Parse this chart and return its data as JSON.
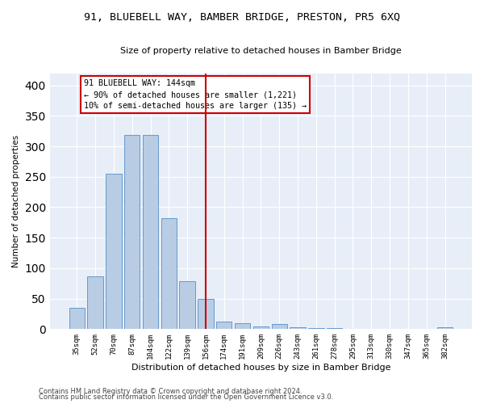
{
  "title": "91, BLUEBELL WAY, BAMBER BRIDGE, PRESTON, PR5 6XQ",
  "subtitle": "Size of property relative to detached houses in Bamber Bridge",
  "xlabel": "Distribution of detached houses by size in Bamber Bridge",
  "ylabel": "Number of detached properties",
  "categories": [
    "35sqm",
    "52sqm",
    "70sqm",
    "87sqm",
    "104sqm",
    "122sqm",
    "139sqm",
    "156sqm",
    "174sqm",
    "191sqm",
    "209sqm",
    "226sqm",
    "243sqm",
    "261sqm",
    "278sqm",
    "295sqm",
    "313sqm",
    "330sqm",
    "347sqm",
    "365sqm",
    "382sqm"
  ],
  "values": [
    35,
    87,
    255,
    318,
    318,
    182,
    78,
    50,
    12,
    10,
    5,
    8,
    3,
    2,
    2,
    1,
    1,
    1,
    0.5,
    0.5,
    3
  ],
  "bar_color": "#b8cce4",
  "bar_edge_color": "#6699cc",
  "background_color": "#e8eef8",
  "vline_x": 7.0,
  "vline_color": "#cc0000",
  "annotation_text_line1": "91 BLUEBELL WAY: 144sqm",
  "annotation_text_line2": "← 90% of detached houses are smaller (1,221)",
  "annotation_text_line3": "10% of semi-detached houses are larger (135) →",
  "footer_line1": "Contains HM Land Registry data © Crown copyright and database right 2024.",
  "footer_line2": "Contains public sector information licensed under the Open Government Licence v3.0.",
  "ylim": [
    0,
    420
  ],
  "yticks": [
    0,
    50,
    100,
    150,
    200,
    250,
    300,
    350,
    400
  ]
}
